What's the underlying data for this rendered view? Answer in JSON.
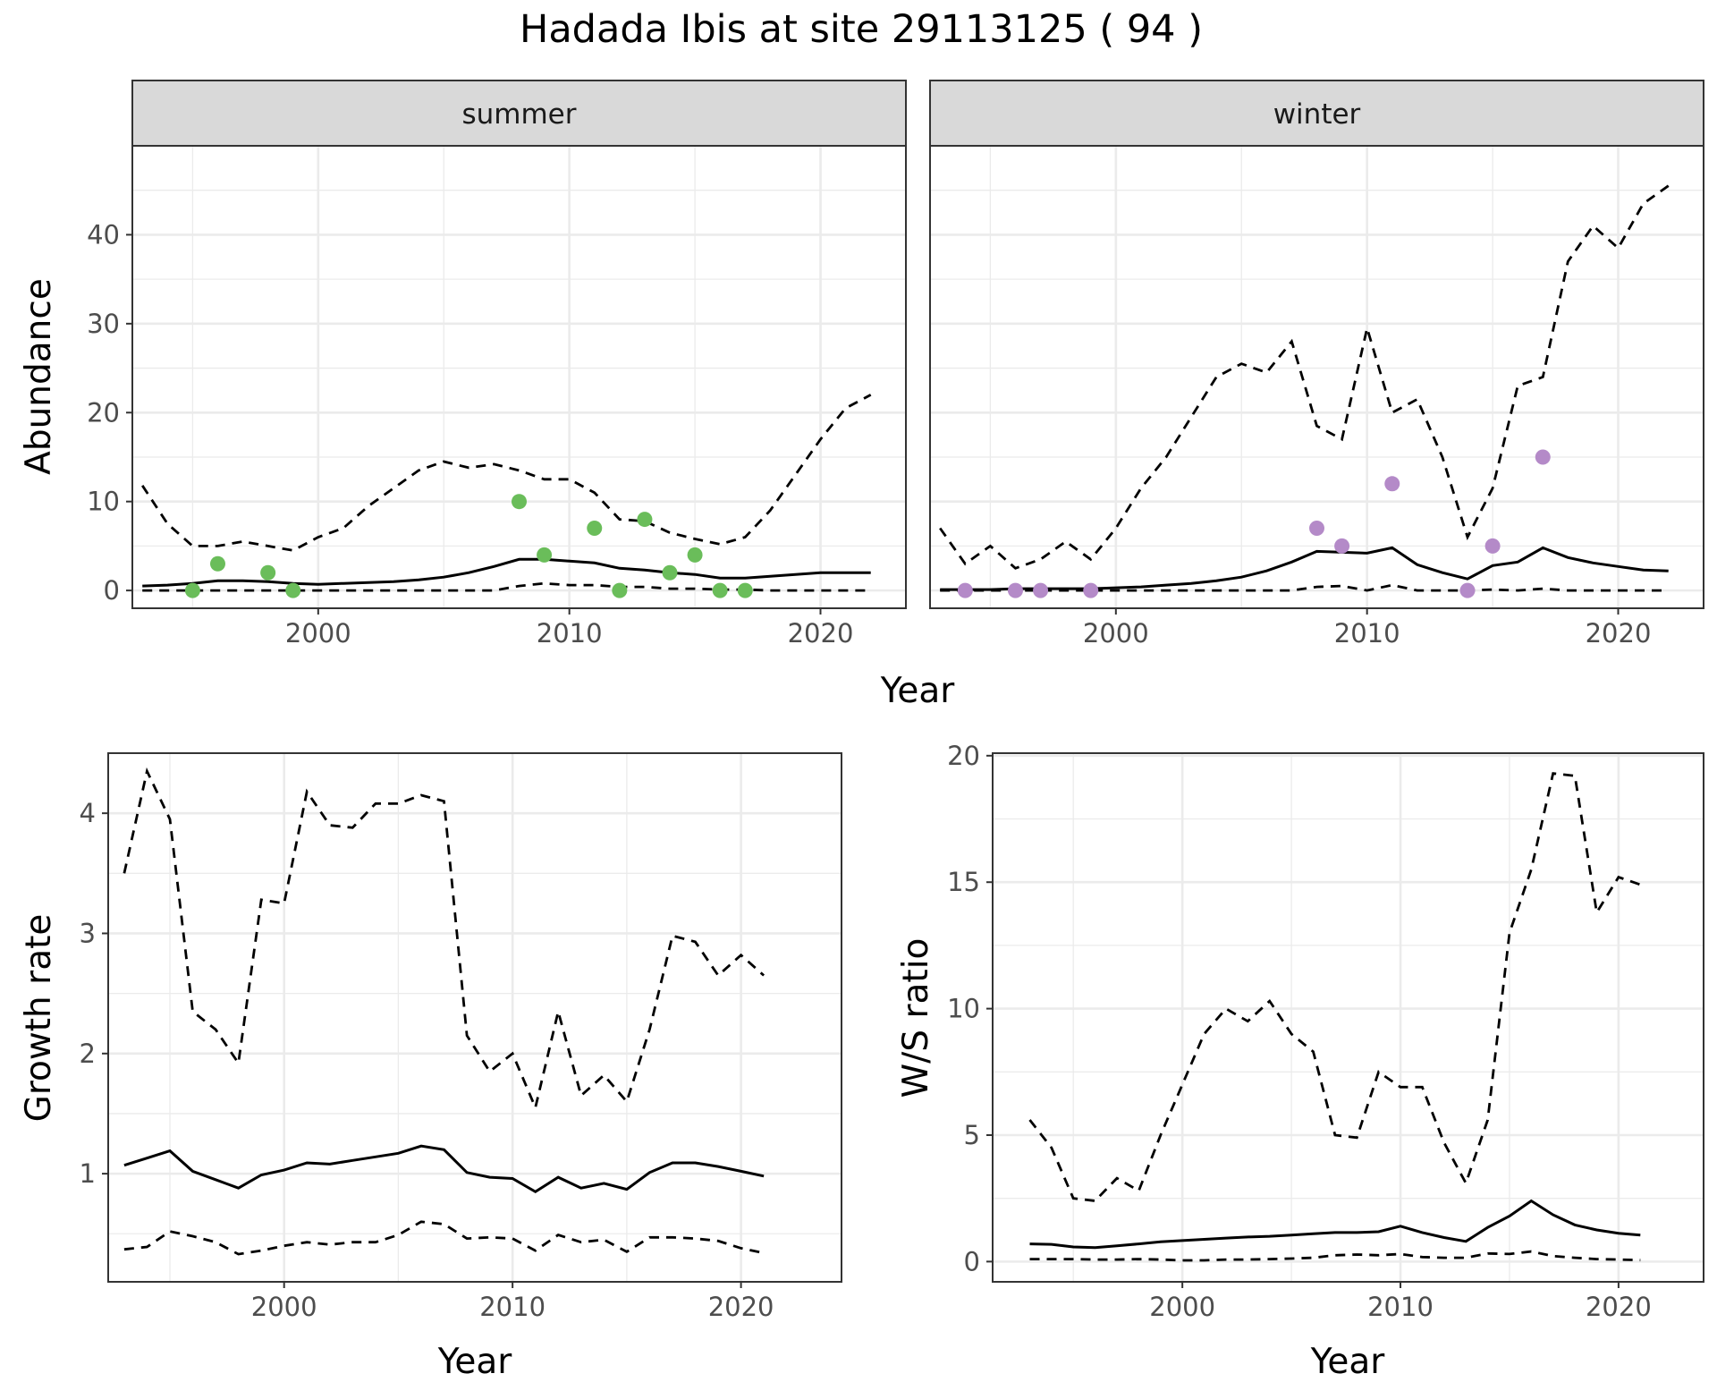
{
  "title": "Hadada Ibis at site 29113125 ( 94 )",
  "colors": {
    "summer_points": "#6abd5a",
    "winter_points": "#b48ac8",
    "line": "#000000",
    "strip": "#d9d9d9",
    "grid": "#ebebeb"
  },
  "chart_data": [
    {
      "id": "abundance",
      "type": "line",
      "xlabel": "Year",
      "ylabel": "Abundance",
      "xlim": [
        1992.6,
        2023.4
      ],
      "ylim": [
        -2,
        50
      ],
      "xticks": [
        2000,
        2010,
        2020
      ],
      "yticks": [
        0,
        10,
        20,
        30,
        40
      ],
      "grid": true,
      "facets": [
        {
          "label": "summer",
          "point_color": "#6abd5a",
          "mean": {
            "x": [
              1993,
              1994,
              1995,
              1996,
              1997,
              1998,
              1999,
              2000,
              2001,
              2002,
              2003,
              2004,
              2005,
              2006,
              2007,
              2008,
              2009,
              2010,
              2011,
              2012,
              2013,
              2014,
              2015,
              2016,
              2017,
              2018,
              2019,
              2020,
              2021,
              2022
            ],
            "y": [
              0.5,
              0.6,
              0.8,
              1.1,
              1.1,
              1.0,
              0.8,
              0.7,
              0.8,
              0.9,
              1.0,
              1.2,
              1.5,
              2.0,
              2.7,
              3.5,
              3.5,
              3.3,
              3.1,
              2.5,
              2.3,
              2.0,
              1.8,
              1.4,
              1.4,
              1.6,
              1.8,
              2.0,
              2.0,
              2.0
            ]
          },
          "upper": {
            "x": [
              1993,
              1994,
              1995,
              1996,
              1997,
              1998,
              1999,
              2000,
              2001,
              2002,
              2003,
              2004,
              2005,
              2006,
              2007,
              2008,
              2009,
              2010,
              2011,
              2012,
              2013,
              2014,
              2015,
              2016,
              2017,
              2018,
              2019,
              2020,
              2021,
              2022
            ],
            "y": [
              11.8,
              7.5,
              5.0,
              5.0,
              5.5,
              5.0,
              4.5,
              6.0,
              7.0,
              9.5,
              11.5,
              13.5,
              14.5,
              13.8,
              14.2,
              13.5,
              12.5,
              12.5,
              11.0,
              8.0,
              7.8,
              6.5,
              5.8,
              5.2,
              6.0,
              9.0,
              13.0,
              17.0,
              20.5,
              22.0
            ]
          },
          "lower": {
            "x": [
              1993,
              1994,
              1995,
              1996,
              1997,
              1998,
              1999,
              2000,
              2001,
              2002,
              2003,
              2004,
              2005,
              2006,
              2007,
              2008,
              2009,
              2010,
              2011,
              2012,
              2013,
              2014,
              2015,
              2016,
              2017,
              2018,
              2019,
              2020,
              2021,
              2022
            ],
            "y": [
              0,
              0,
              0,
              0,
              0,
              0,
              0,
              0,
              0,
              0,
              0,
              0,
              0,
              0,
              0,
              0.5,
              0.8,
              0.6,
              0.6,
              0.4,
              0.4,
              0.2,
              0.2,
              0.1,
              0.1,
              0,
              0,
              0,
              0,
              0
            ]
          },
          "points": {
            "x": [
              1995,
              1996,
              1998,
              1999,
              2008,
              2009,
              2011,
              2012,
              2013,
              2014,
              2015,
              2016,
              2017
            ],
            "y": [
              0,
              3,
              2,
              0,
              10,
              4,
              7,
              0,
              8,
              2,
              4,
              0,
              0
            ]
          }
        },
        {
          "label": "winter",
          "point_color": "#b48ac8",
          "mean": {
            "x": [
              1993,
              1994,
              1995,
              1996,
              1997,
              1998,
              1999,
              2000,
              2001,
              2002,
              2003,
              2004,
              2005,
              2006,
              2007,
              2008,
              2009,
              2010,
              2011,
              2012,
              2013,
              2014,
              2015,
              2016,
              2017,
              2018,
              2019,
              2020,
              2021,
              2022
            ],
            "y": [
              0.1,
              0.1,
              0.1,
              0.2,
              0.2,
              0.2,
              0.2,
              0.3,
              0.4,
              0.6,
              0.8,
              1.1,
              1.5,
              2.2,
              3.2,
              4.4,
              4.3,
              4.2,
              4.8,
              2.9,
              2.0,
              1.3,
              2.8,
              3.2,
              4.8,
              3.7,
              3.1,
              2.7,
              2.3,
              2.2
            ]
          },
          "upper": {
            "x": [
              1993,
              1994,
              1995,
              1996,
              1997,
              1998,
              1999,
              2000,
              2001,
              2002,
              2003,
              2004,
              2005,
              2006,
              2007,
              2008,
              2009,
              2010,
              2011,
              2012,
              2013,
              2014,
              2015,
              2016,
              2017,
              2018,
              2019,
              2020,
              2021,
              2022
            ],
            "y": [
              7.0,
              3.0,
              5.0,
              2.5,
              3.5,
              5.5,
              3.5,
              7.0,
              11.5,
              15.0,
              19.5,
              24.0,
              25.5,
              24.5,
              28.0,
              18.5,
              17.0,
              29.5,
              20.0,
              21.5,
              15.0,
              6.0,
              11.5,
              23.0,
              24.0,
              37.0,
              41.0,
              38.5,
              43.5,
              45.5
            ]
          },
          "lower": {
            "x": [
              1993,
              1994,
              1995,
              1996,
              1997,
              1998,
              1999,
              2000,
              2001,
              2002,
              2003,
              2004,
              2005,
              2006,
              2007,
              2008,
              2009,
              2010,
              2011,
              2012,
              2013,
              2014,
              2015,
              2016,
              2017,
              2018,
              2019,
              2020,
              2021,
              2022
            ],
            "y": [
              0,
              0,
              0,
              0,
              0,
              0,
              0,
              0,
              0,
              0,
              0,
              0,
              0,
              0,
              0,
              0.4,
              0.5,
              0,
              0.6,
              0,
              0,
              0,
              0.1,
              0,
              0.2,
              0,
              0,
              0,
              0,
              0
            ]
          },
          "points": {
            "x": [
              1994,
              1996,
              1997,
              1999,
              2008,
              2009,
              2011,
              2014,
              2015,
              2017
            ],
            "y": [
              0,
              0,
              0,
              0,
              7,
              5,
              12,
              0,
              5,
              15
            ]
          }
        }
      ]
    },
    {
      "id": "growth",
      "type": "line",
      "xlabel": "Year",
      "ylabel": "Growth rate",
      "xlim": [
        1992.3,
        2024.4
      ],
      "ylim": [
        0.1,
        4.5
      ],
      "xticks": [
        2000,
        2010,
        2020
      ],
      "yticks": [
        1,
        2,
        3,
        4
      ],
      "grid": true,
      "mean": {
        "x": [
          1993,
          1994,
          1995,
          1996,
          1997,
          1998,
          1999,
          2000,
          2001,
          2002,
          2003,
          2004,
          2005,
          2006,
          2007,
          2008,
          2009,
          2010,
          2011,
          2012,
          2013,
          2014,
          2015,
          2016,
          2017,
          2018,
          2019,
          2020,
          2021
        ],
        "y": [
          1.07,
          1.13,
          1.19,
          1.02,
          0.95,
          0.88,
          0.99,
          1.03,
          1.09,
          1.08,
          1.11,
          1.14,
          1.17,
          1.23,
          1.2,
          1.01,
          0.97,
          0.96,
          0.85,
          0.97,
          0.88,
          0.92,
          0.87,
          1.01,
          1.09,
          1.09,
          1.06,
          1.02,
          0.98
        ]
      },
      "upper": {
        "x": [
          1993,
          1994,
          1995,
          1996,
          1997,
          1998,
          1999,
          2000,
          2001,
          2002,
          2003,
          2004,
          2005,
          2006,
          2007,
          2008,
          2009,
          2010,
          2011,
          2012,
          2013,
          2014,
          2015,
          2016,
          2017,
          2018,
          2019,
          2020,
          2021
        ],
        "y": [
          3.5,
          4.35,
          3.95,
          2.35,
          2.2,
          1.92,
          3.28,
          3.25,
          4.18,
          3.9,
          3.88,
          4.08,
          4.08,
          4.15,
          4.1,
          2.15,
          1.85,
          2.0,
          1.55,
          2.35,
          1.65,
          1.82,
          1.6,
          2.2,
          2.98,
          2.93,
          2.65,
          2.82,
          2.65
        ]
      },
      "lower": {
        "x": [
          1993,
          1994,
          1995,
          1996,
          1997,
          1998,
          1999,
          2000,
          2001,
          2002,
          2003,
          2004,
          2005,
          2006,
          2007,
          2008,
          2009,
          2010,
          2011,
          2012,
          2013,
          2014,
          2015,
          2016,
          2017,
          2018,
          2019,
          2020,
          2021
        ],
        "y": [
          0.37,
          0.39,
          0.52,
          0.48,
          0.43,
          0.33,
          0.36,
          0.4,
          0.43,
          0.41,
          0.43,
          0.43,
          0.49,
          0.6,
          0.58,
          0.46,
          0.47,
          0.46,
          0.36,
          0.49,
          0.43,
          0.45,
          0.35,
          0.47,
          0.47,
          0.46,
          0.44,
          0.38,
          0.34
        ]
      }
    },
    {
      "id": "ws_ratio",
      "type": "line",
      "xlabel": "Year",
      "ylabel": "W/S ratio",
      "xlim": [
        1991.3,
        2023.9
      ],
      "ylim": [
        -0.8,
        20.1
      ],
      "xticks": [
        2000,
        2010,
        2020
      ],
      "yticks": [
        0,
        5,
        10,
        15,
        20
      ],
      "grid": true,
      "mean": {
        "x": [
          1993,
          1994,
          1995,
          1996,
          1997,
          1998,
          1999,
          2000,
          2001,
          2002,
          2003,
          2004,
          2005,
          2006,
          2007,
          2008,
          2009,
          2010,
          2011,
          2012,
          2013,
          2014,
          2015,
          2016,
          2017,
          2018,
          2019,
          2020,
          2021
        ],
        "y": [
          0.7,
          0.68,
          0.58,
          0.55,
          0.62,
          0.7,
          0.78,
          0.83,
          0.88,
          0.93,
          0.97,
          1.0,
          1.05,
          1.1,
          1.15,
          1.15,
          1.18,
          1.4,
          1.15,
          0.95,
          0.8,
          1.35,
          1.8,
          2.4,
          1.85,
          1.45,
          1.25,
          1.12,
          1.05
        ]
      },
      "upper": {
        "x": [
          1993,
          1994,
          1995,
          1996,
          1997,
          1998,
          1999,
          2000,
          2001,
          2002,
          2003,
          2004,
          2005,
          2006,
          2007,
          2008,
          2009,
          2010,
          2011,
          2012,
          2013,
          2014,
          2015,
          2016,
          2017,
          2018,
          2019,
          2020,
          2021
        ],
        "y": [
          5.6,
          4.5,
          2.5,
          2.4,
          3.3,
          2.8,
          5.0,
          7.0,
          9.0,
          10.0,
          9.5,
          10.3,
          9.0,
          8.3,
          5.0,
          4.9,
          7.5,
          6.9,
          6.9,
          4.7,
          3.1,
          5.6,
          13.0,
          15.5,
          19.3,
          19.2,
          13.8,
          15.2,
          14.9
        ]
      },
      "lower": {
        "x": [
          1993,
          1994,
          1995,
          1996,
          1997,
          1998,
          1999,
          2000,
          2001,
          2002,
          2003,
          2004,
          2005,
          2006,
          2007,
          2008,
          2009,
          2010,
          2011,
          2012,
          2013,
          2014,
          2015,
          2016,
          2017,
          2018,
          2019,
          2020,
          2021
        ],
        "y": [
          0.1,
          0.1,
          0.1,
          0.08,
          0.08,
          0.1,
          0.08,
          0.05,
          0.05,
          0.08,
          0.08,
          0.1,
          0.12,
          0.15,
          0.25,
          0.28,
          0.25,
          0.3,
          0.18,
          0.15,
          0.15,
          0.32,
          0.3,
          0.4,
          0.22,
          0.15,
          0.1,
          0.08,
          0.06
        ]
      }
    }
  ]
}
